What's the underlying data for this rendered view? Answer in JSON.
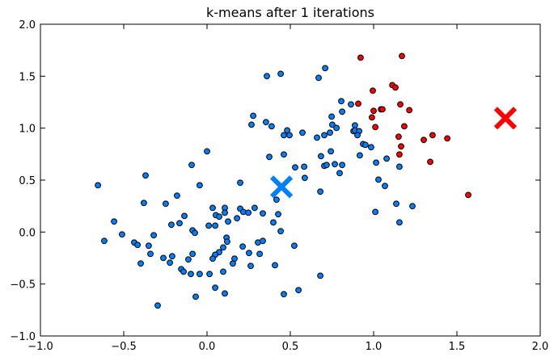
{
  "chart_data": {
    "type": "scatter",
    "title": "k-means after 1 iterations",
    "xlabel": "",
    "ylabel": "",
    "xlim": [
      -1.0,
      2.0
    ],
    "ylim": [
      -1.0,
      2.0
    ],
    "xticks": [
      "−1.0",
      "−0.5",
      "0.0",
      "0.5",
      "1.0",
      "1.5",
      "2.0"
    ],
    "yticks": [
      "−1.0",
      "−0.5",
      "0.0",
      "0.5",
      "1.0",
      "1.5",
      "2.0"
    ],
    "grid": false,
    "legend": null,
    "colors": {
      "cluster_blue": "#0080ff",
      "cluster_red": "#ff0000",
      "edge": "#000000"
    },
    "series": [
      {
        "name": "cluster_blue",
        "color": "#0080ff",
        "points": [
          [
            -0.655,
            0.45
          ],
          [
            -0.369,
            0.544
          ],
          [
            -0.092,
            0.645
          ],
          [
            -0.044,
            0.45
          ],
          [
            -0.18,
            0.35
          ],
          [
            -0.379,
            0.28
          ],
          [
            -0.248,
            0.272
          ],
          [
            -0.558,
            0.101
          ],
          [
            -0.136,
            0.155
          ],
          [
            -0.214,
            0.07
          ],
          [
            -0.165,
            0.085
          ],
          [
            0.01,
            0.062
          ],
          [
            -0.51,
            -0.023
          ],
          [
            -0.617,
            -0.085
          ],
          [
            -0.32,
            -0.031
          ],
          [
            -0.087,
            0.016
          ],
          [
            -0.073,
            -0.008
          ],
          [
            -0.437,
            -0.101
          ],
          [
            -0.417,
            -0.124
          ],
          [
            -0.35,
            -0.132
          ],
          [
            -0.34,
            -0.21
          ],
          [
            -0.262,
            -0.249
          ],
          [
            -0.209,
            -0.233
          ],
          [
            -0.223,
            -0.295
          ],
          [
            -0.398,
            -0.303
          ],
          [
            -0.087,
            -0.21
          ],
          [
            -0.112,
            -0.264
          ],
          [
            -0.155,
            -0.357
          ],
          [
            -0.141,
            -0.381
          ],
          [
            -0.097,
            -0.404
          ],
          [
            -0.044,
            -0.404
          ],
          [
            0.015,
            -0.404
          ],
          [
            -0.068,
            -0.622
          ],
          [
            -0.296,
            -0.707
          ],
          [
            0.0,
            0.777
          ],
          [
            0.199,
            0.474
          ],
          [
            0.374,
            0.723
          ],
          [
            0.461,
            0.746
          ],
          [
            0.529,
            0.622
          ],
          [
            0.583,
            0.629
          ],
          [
            0.587,
            0.521
          ],
          [
            0.417,
            0.311
          ],
          [
            0.034,
            0.233
          ],
          [
            0.107,
            0.233
          ],
          [
            0.053,
            0.163
          ],
          [
            0.073,
            0.148
          ],
          [
            0.107,
            0.186
          ],
          [
            0.199,
            0.225
          ],
          [
            0.218,
            0.194
          ],
          [
            0.248,
            0.186
          ],
          [
            0.286,
            0.233
          ],
          [
            0.335,
            0.179
          ],
          [
            0.427,
            0.171
          ],
          [
            0.18,
            0.132
          ],
          [
            0.126,
            0.101
          ],
          [
            0.049,
            0.062
          ],
          [
            0.398,
            0.093
          ],
          [
            0.442,
            0.008
          ],
          [
            0.117,
            -0.054
          ],
          [
            0.121,
            -0.093
          ],
          [
            0.097,
            -0.148
          ],
          [
            0.306,
            -0.101
          ],
          [
            0.335,
            -0.085
          ],
          [
            0.214,
            -0.14
          ],
          [
            0.073,
            -0.194
          ],
          [
            0.049,
            -0.218
          ],
          [
            0.034,
            -0.256
          ],
          [
            0.252,
            -0.202
          ],
          [
            0.316,
            -0.21
          ],
          [
            0.165,
            -0.256
          ],
          [
            0.155,
            -0.303
          ],
          [
            0.524,
            -0.132
          ],
          [
            0.262,
            -0.326
          ],
          [
            0.408,
            -0.319
          ],
          [
            0.097,
            -0.381
          ],
          [
            0.049,
            -0.536
          ],
          [
            0.107,
            -0.591
          ],
          [
            0.461,
            -0.598
          ],
          [
            0.549,
            -0.559
          ],
          [
            0.359,
            1.5
          ],
          [
            0.442,
            1.523
          ],
          [
            0.67,
            1.484
          ],
          [
            0.709,
            1.577
          ],
          [
            0.806,
            1.259
          ],
          [
            0.864,
            1.228
          ],
          [
            0.277,
            1.119
          ],
          [
            0.267,
            1.033
          ],
          [
            0.354,
            1.057
          ],
          [
            0.388,
            1.018
          ],
          [
            0.481,
            0.979
          ],
          [
            0.461,
            0.932
          ],
          [
            0.495,
            0.932
          ],
          [
            0.573,
            0.956
          ],
          [
            0.66,
            0.909
          ],
          [
            0.704,
            0.932
          ],
          [
            0.738,
            0.956
          ],
          [
            0.748,
            1.111
          ],
          [
            0.811,
            1.158
          ],
          [
            0.752,
            1.033
          ],
          [
            0.777,
            1.002
          ],
          [
            0.888,
            1.026
          ],
          [
            0.879,
            0.971
          ],
          [
            0.888,
            0.979
          ],
          [
            0.913,
            0.971
          ],
          [
            0.903,
            0.932
          ],
          [
            0.937,
            0.847
          ],
          [
            0.951,
            0.839
          ],
          [
            0.985,
            0.816
          ],
          [
            0.917,
            0.738
          ],
          [
            1.078,
            0.707
          ],
          [
            1.015,
            0.668
          ],
          [
            1.155,
            0.629
          ],
          [
            0.684,
            0.73
          ],
          [
            0.743,
            0.777
          ],
          [
            0.704,
            0.637
          ],
          [
            0.718,
            0.645
          ],
          [
            0.767,
            0.653
          ],
          [
            0.811,
            0.645
          ],
          [
            0.796,
            0.567
          ],
          [
            0.68,
            0.389
          ],
          [
            1.029,
            0.505
          ],
          [
            1.068,
            0.443
          ],
          [
            1.136,
            0.272
          ],
          [
            1.233,
            0.249
          ],
          [
            1.01,
            0.194
          ],
          [
            1.155,
            0.093
          ],
          [
            0.68,
            -0.42
          ]
        ]
      },
      {
        "name": "cluster_red",
        "color": "#ff0000",
        "points": [
          [
            0.922,
            1.678
          ],
          [
            1.17,
            1.694
          ],
          [
            1.112,
            1.414
          ],
          [
            1.131,
            1.391
          ],
          [
            0.995,
            1.36
          ],
          [
            0.908,
            1.235
          ],
          [
            1.16,
            1.228
          ],
          [
            1.0,
            1.166
          ],
          [
            1.044,
            1.181
          ],
          [
            1.053,
            1.181
          ],
          [
            1.214,
            1.173
          ],
          [
            0.99,
            1.103
          ],
          [
            1.01,
            1.01
          ],
          [
            1.184,
            1.018
          ],
          [
            1.15,
            0.917
          ],
          [
            1.301,
            0.886
          ],
          [
            1.354,
            0.932
          ],
          [
            1.442,
            0.901
          ],
          [
            1.165,
            0.824
          ],
          [
            1.155,
            0.746
          ],
          [
            1.34,
            0.676
          ],
          [
            1.568,
            0.357
          ]
        ]
      }
    ],
    "centroids": [
      {
        "name": "centroid_blue",
        "color": "#0080ff",
        "marker": "x",
        "point": [
          0.447,
          0.435
        ]
      },
      {
        "name": "centroid_red",
        "color": "#ff0000",
        "marker": "x",
        "point": [
          1.791,
          1.096
        ]
      }
    ]
  }
}
